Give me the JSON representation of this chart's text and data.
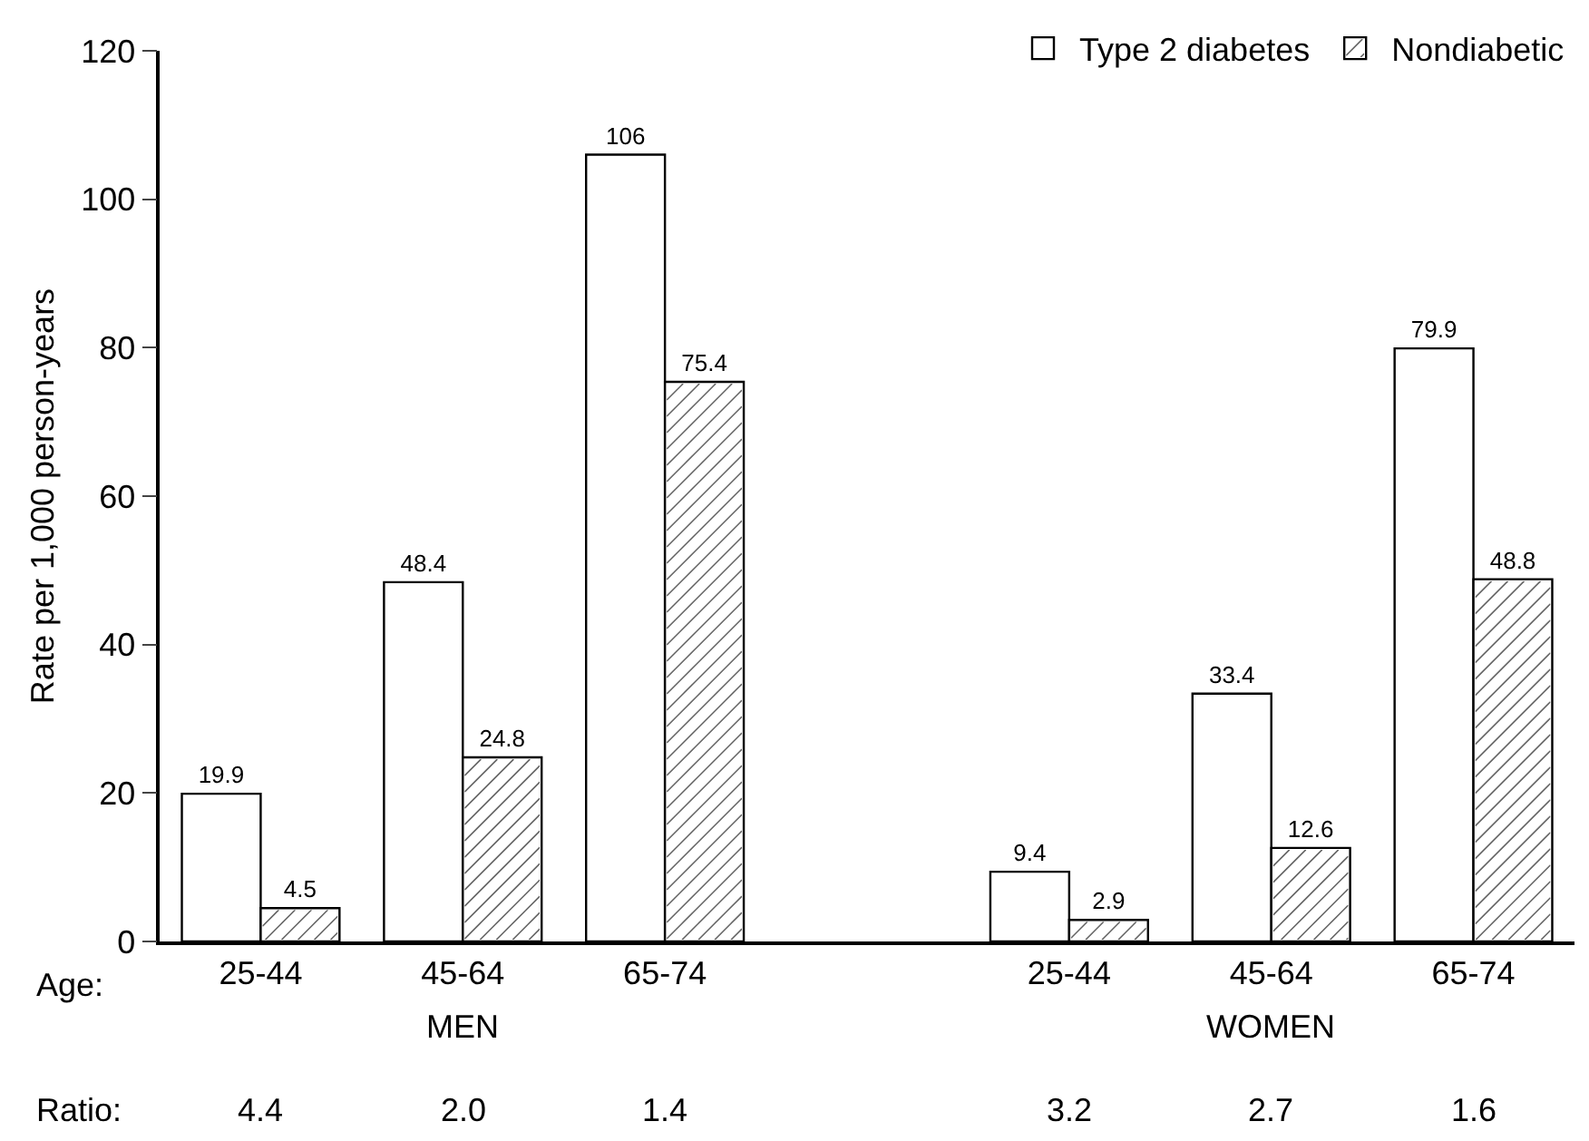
{
  "chart_data": {
    "type": "bar",
    "ylabel": "Rate per 1,000 person-years",
    "categories": [
      "25-44",
      "45-64",
      "65-74",
      null,
      "25-44",
      "45-64",
      "65-74"
    ],
    "series": [
      {
        "name": "Type 2 diabetes",
        "color": "#ffffff",
        "values": [
          19.9,
          48.4,
          106,
          null,
          9.4,
          33.4,
          79.9
        ]
      },
      {
        "name": "Nondiabetic",
        "color": "#ffffff",
        "values": [
          4.5,
          24.8,
          75.4,
          null,
          2.9,
          12.6,
          48.8
        ]
      }
    ],
    "ylim": [
      0,
      120
    ],
    "yticks": [
      0,
      20,
      40,
      60,
      80,
      100,
      120
    ],
    "grid": false,
    "legend": "top right",
    "data_labels": true,
    "annotations": [
      "Age:",
      "MEN",
      "WOMEN",
      "Ratio:",
      "4.4",
      "2.0",
      "1.4",
      "3.2",
      "2.7",
      "1.6"
    ]
  }
}
